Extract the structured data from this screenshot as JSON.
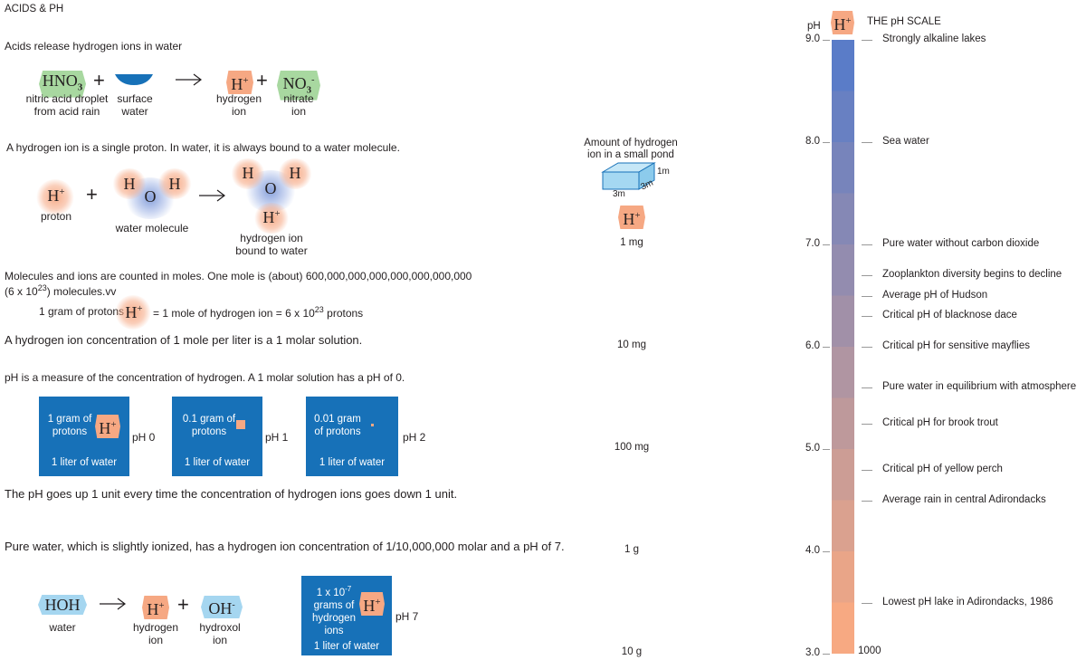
{
  "title": "ACIDS & PH",
  "section1": {
    "heading": "Acids release hydrogen ions in water",
    "hno3": "HNO",
    "hno3_sub": "3",
    "no3": "NO",
    "no3_sub": "3",
    "no3_sup": "-",
    "hplus": "H",
    "plus_sign": "+",
    "label_droplet": "nitric acid droplet from acid rain",
    "label_surface": "surface water",
    "label_hydrogen": "hydrogen ion",
    "label_nitrate": "nitrate ion"
  },
  "section2": {
    "heading": "A hydrogen ion is a single proton. In water, it is always bound to a water molecule.",
    "proton_label": "proton",
    "water_label": "water molecule",
    "bound_label": "hydrogen ion bound to water",
    "atom_h": "H",
    "atom_o": "O"
  },
  "section3": {
    "mole_text_1": "Molecules and ions are counted in moles. One mole is (about) 600,000,000,000,000,000,000,000",
    "mole_text_2a": "(6 x 10",
    "mole_text_2sup": "23",
    "mole_text_2b": ") molecules.vv",
    "gram_label": "1 gram of protons",
    "equals_mole": "= 1 mole of hydrogen ion  =  6 x 10",
    "equals_sup": "23",
    "equals_end": " protons",
    "molar": "A hydrogen ion concentration of 1 mole per liter is a 1 molar solution.",
    "ph_measure": "pH is a measure of the concentration of hydrogen.  A 1 molar solution has a pH of 0."
  },
  "boxes": [
    {
      "amount": "1 gram of protons",
      "liter": "1 liter of water",
      "ph": "pH 0"
    },
    {
      "amount": "0.1 gram of protons",
      "liter": "1 liter of water",
      "ph": "pH 1"
    },
    {
      "amount": "0.01 gram of protons",
      "liter": "1 liter of water",
      "ph": "pH 2"
    }
  ],
  "section4": {
    "goes_up": "The pH goes up 1 unit every time the concentration of hydrogen ions goes down 1 unit.",
    "pure_water": "Pure water, which is slightly ionized, has a hydrogen ion concentration of 1/10,000,000 molar and a pH of 7.",
    "hoh": "HOH",
    "oh": "OH",
    "oh_sup": "-",
    "water_label": "water",
    "hydrogen_label": "hydrogen ion",
    "hydroxol_label": "hydroxol ion",
    "box7_amount_1": "1 x 10",
    "box7_amount_sup": "-7",
    "box7_amount_2": "grams of hydrogen ions",
    "box7_liter": "1 liter of water",
    "box7_ph": "pH 7"
  },
  "pond": {
    "title": "Amount of hydrogen ion in a small pond",
    "dim_w": "3m",
    "dim_d": "3m",
    "dim_h": "1m",
    "amounts": [
      "1 mg",
      "10 mg",
      "100 mg",
      "1 g",
      "10 g"
    ]
  },
  "scale": {
    "title": "THE pH SCALE",
    "ph_label": "pH",
    "bottom_label": "1000",
    "ticks": [
      "9.0",
      "8.0",
      "7.0",
      "6.0",
      "5.0",
      "4.0",
      "3.0"
    ],
    "annotations": [
      {
        "ph": 9.0,
        "text": "Strongly alkaline lakes"
      },
      {
        "ph": 8.0,
        "text": "Sea water"
      },
      {
        "ph": 7.0,
        "text": "Pure water without carbon dioxide"
      },
      {
        "ph": 6.7,
        "text": "Zooplankton diversity begins to decline"
      },
      {
        "ph": 6.5,
        "text": "Average pH of Hudson"
      },
      {
        "ph": 6.3,
        "text": "Critical pH of blacknose dace"
      },
      {
        "ph": 6.0,
        "text": "Critical pH for sensitive mayflies"
      },
      {
        "ph": 5.6,
        "text": "Pure water in equilibrium with atmosphere"
      },
      {
        "ph": 5.25,
        "text": "Critical pH for brook trout"
      },
      {
        "ph": 4.8,
        "text": "Critical pH of yellow perch"
      },
      {
        "ph": 4.5,
        "text": "Average rain in central Adirondacks"
      },
      {
        "ph": 3.5,
        "text": "Lowest pH lake in Adirondacks, 1986"
      }
    ],
    "colors": {
      "top": "#5a7cc8",
      "bottom": "#f7a982"
    }
  }
}
